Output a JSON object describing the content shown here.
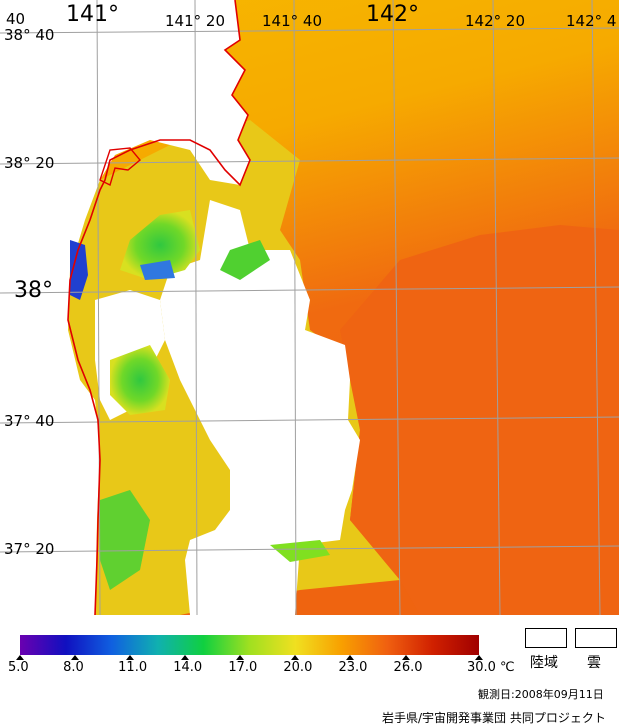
{
  "map": {
    "lon_labels": [
      {
        "text": "141°",
        "big": true
      },
      {
        "text": "141° 20",
        "big": false
      },
      {
        "text": "141° 40",
        "big": false
      },
      {
        "text": "142°",
        "big": true
      },
      {
        "text": "142° 20",
        "big": false
      },
      {
        "text": "142° 4",
        "big": false
      }
    ],
    "lat_labels": [
      {
        "text": "38° 40",
        "big": false
      },
      {
        "text": "38° 20",
        "big": false
      },
      {
        "text": "38°",
        "big": true
      },
      {
        "text": "37° 40",
        "big": false
      },
      {
        "text": "37° 20",
        "big": false
      }
    ],
    "corner_label": "40",
    "colors": {
      "coastline": "#e00000",
      "grid": "#a0a0a0",
      "land": "#ffffff",
      "ocean_north": "#f5b000",
      "ocean_south": "#f06010",
      "coastal_green": "#30d030",
      "coastal_blue": "#2060e0",
      "coastal_yellow": "#d8e020"
    }
  },
  "colorbar": {
    "ticks": [
      "5.0",
      "8.0",
      "11.0",
      "14.0",
      "17.0",
      "20.0",
      "23.0",
      "26.0",
      "30.0"
    ],
    "unit": "℃",
    "stops": [
      "#6a00b0",
      "#1010c0",
      "#1060e0",
      "#10b0b0",
      "#10d040",
      "#a0e020",
      "#f0e020",
      "#f8a000",
      "#f06010",
      "#d02000",
      "#a00000"
    ]
  },
  "legend": {
    "land_label": "陸域",
    "cloud_label": "雲"
  },
  "footer": {
    "date": "観測日:2008年09月11日",
    "credit": "岩手県/宇宙開発事業団 共同プロジェクト"
  }
}
